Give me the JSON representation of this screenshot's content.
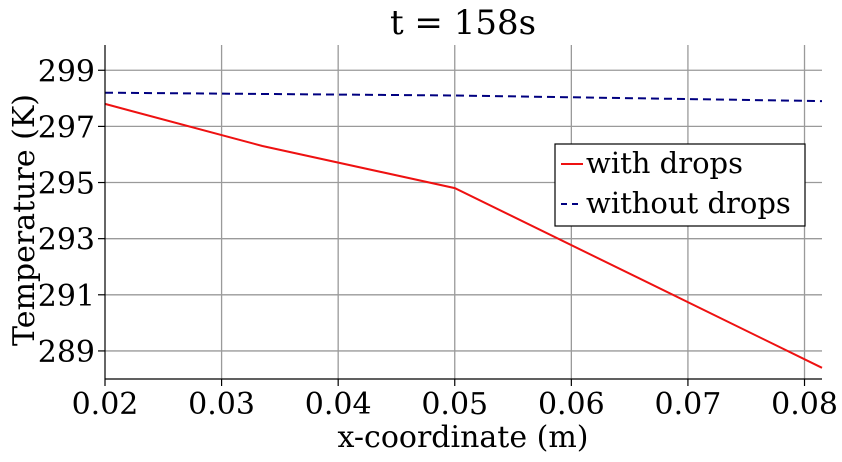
{
  "chart_data": {
    "type": "line",
    "title": "t = 158s",
    "xlabel": "x-coordinate (m)",
    "ylabel": "Temperature (K)",
    "xlim": [
      0.02,
      0.0815
    ],
    "ylim": [
      288.0,
      299.9
    ],
    "xticks": [
      0.02,
      0.03,
      0.04,
      0.05,
      0.06,
      0.07,
      0.08
    ],
    "xtick_labels": [
      "0.02",
      "0.03",
      "0.04",
      "0.05",
      "0.06",
      "0.07",
      "0.08"
    ],
    "yticks": [
      289,
      291,
      293,
      295,
      297,
      299
    ],
    "ytick_labels": [
      "289",
      "291",
      "293",
      "295",
      "297",
      "299"
    ],
    "grid": true,
    "legend_position": "right",
    "series": [
      {
        "name": "with drops",
        "color": "#ee1111",
        "style": "solid",
        "x": [
          0.02,
          0.0335,
          0.05,
          0.0815
        ],
        "y": [
          297.8,
          296.3,
          294.8,
          288.4
        ]
      },
      {
        "name": "without drops",
        "color": "#000080",
        "style": "dashed",
        "x": [
          0.02,
          0.05,
          0.0815
        ],
        "y": [
          298.2,
          298.1,
          297.9
        ]
      }
    ]
  }
}
